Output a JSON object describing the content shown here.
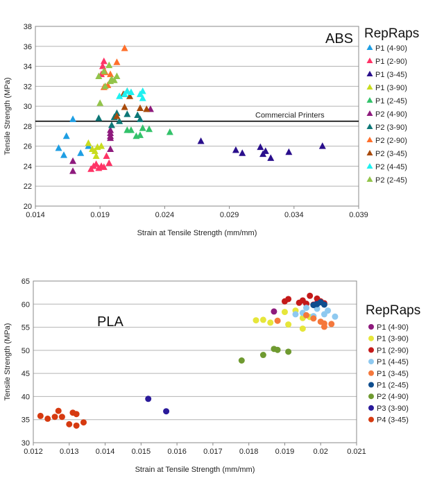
{
  "chart_data": [
    {
      "type": "scatter",
      "title": "ABS",
      "xlabel": "Strain at Tensile Strength (mm/mm)",
      "ylabel": "Tensile Strength (MPa)",
      "xlim": [
        0.014,
        0.039
      ],
      "ylim": [
        20,
        38
      ],
      "x_ticks": [
        "0.014",
        "0.019",
        "0.024",
        "0.029",
        "0.034",
        "0.039"
      ],
      "y_ticks": [
        "20",
        "22",
        "24",
        "26",
        "28",
        "30",
        "32",
        "34",
        "36",
        "38"
      ],
      "grid": "horizontal",
      "legend_title": "RepRaps",
      "legend_position": "right",
      "marker": "triangle",
      "reference_line": {
        "y": 28.5,
        "label": "Commercial Printers"
      },
      "series": [
        {
          "name": "P1 (4-90)",
          "color": "#1e9ee3",
          "points": [
            [
              0.0158,
              25.8
            ],
            [
              0.0162,
              25.1
            ],
            [
              0.0164,
              27
            ],
            [
              0.0169,
              28.7
            ],
            [
              0.0175,
              25.3
            ],
            [
              0.0181,
              26
            ]
          ]
        },
        {
          "name": "P1 (2-90)",
          "color": "#ff3366",
          "points": [
            [
              0.0183,
              23.7
            ],
            [
              0.0185,
              24
            ],
            [
              0.0187,
              24.2
            ],
            [
              0.0189,
              23.8
            ],
            [
              0.0191,
              24
            ],
            [
              0.0193,
              23.9
            ],
            [
              0.0197,
              24.3
            ],
            [
              0.0195,
              25
            ],
            [
              0.0191,
              33.2
            ],
            [
              0.0193,
              34.5
            ],
            [
              0.0192,
              34
            ]
          ]
        },
        {
          "name": "P1 (3-45)",
          "color": "#2a0f8c",
          "points": [
            [
              0.0268,
              26.5
            ],
            [
              0.0295,
              25.6
            ],
            [
              0.03,
              25.3
            ],
            [
              0.0314,
              25.9
            ],
            [
              0.0316,
              25.2
            ],
            [
              0.0318,
              25.5
            ],
            [
              0.0322,
              24.8
            ],
            [
              0.0336,
              25.4
            ],
            [
              0.0362,
              26
            ]
          ]
        },
        {
          "name": "P1 (3-90)",
          "color": "#c8dc1e",
          "points": [
            [
              0.0181,
              26.3
            ],
            [
              0.0184,
              25.7
            ],
            [
              0.0186,
              25.5
            ],
            [
              0.0188,
              25.9
            ],
            [
              0.0191,
              26
            ],
            [
              0.0187,
              25
            ]
          ]
        },
        {
          "name": "P1 (2-45)",
          "color": "#33c26a",
          "points": [
            [
              0.0211,
              27.6
            ],
            [
              0.0214,
              27.6
            ],
            [
              0.0218,
              27
            ],
            [
              0.0221,
              27.1
            ],
            [
              0.0223,
              27.8
            ],
            [
              0.0228,
              27.7
            ],
            [
              0.0244,
              27.4
            ]
          ]
        },
        {
          "name": "P2 (4-90)",
          "color": "#8e1a7d",
          "points": [
            [
              0.0169,
              24.5
            ],
            [
              0.0169,
              23.5
            ],
            [
              0.0198,
              27
            ],
            [
              0.0198,
              27.3
            ],
            [
              0.0198,
              27.6
            ],
            [
              0.0198,
              25.7
            ],
            [
              0.0229,
              29.7
            ],
            [
              0.0198,
              26.8
            ]
          ]
        },
        {
          "name": "P2 (3-90)",
          "color": "#0d7777",
          "points": [
            [
              0.0189,
              28.8
            ],
            [
              0.0199,
              28.1
            ],
            [
              0.0201,
              28.9
            ],
            [
              0.0203,
              29.3
            ],
            [
              0.0205,
              28.5
            ],
            [
              0.0211,
              29.2
            ],
            [
              0.0219,
              29.1
            ],
            [
              0.0221,
              28.7
            ]
          ]
        },
        {
          "name": "P2 (2-90)",
          "color": "#ff6f2a",
          "points": [
            [
              0.0193,
              31.9
            ],
            [
              0.0196,
              32.1
            ],
            [
              0.0198,
              33.2
            ],
            [
              0.0203,
              34.4
            ],
            [
              0.0209,
              35.8
            ],
            [
              0.0194,
              33.4
            ]
          ]
        },
        {
          "name": "P2 (3-45)",
          "color": "#a84a0a",
          "points": [
            [
              0.0203,
              29
            ],
            [
              0.0209,
              29.9
            ],
            [
              0.0211,
              31.5
            ],
            [
              0.0213,
              31
            ],
            [
              0.0221,
              29.8
            ],
            [
              0.0226,
              29.7
            ],
            [
              0.0208,
              31.2
            ]
          ]
        },
        {
          "name": "P2 (4-45)",
          "color": "#1ef0f0",
          "points": [
            [
              0.0205,
              31
            ],
            [
              0.0209,
              31.2
            ],
            [
              0.0211,
              31.5
            ],
            [
              0.0214,
              31.4
            ],
            [
              0.0221,
              31.2
            ],
            [
              0.0223,
              31.5
            ],
            [
              0.0223,
              30.8
            ]
          ]
        },
        {
          "name": "P2 (2-45)",
          "color": "#92c44a",
          "points": [
            [
              0.0189,
              33
            ],
            [
              0.019,
              30.3
            ],
            [
              0.0193,
              33.5
            ],
            [
              0.0194,
              32
            ],
            [
              0.0197,
              34.1
            ],
            [
              0.0198,
              32.5
            ],
            [
              0.0199,
              32.7
            ],
            [
              0.0201,
              32.6
            ],
            [
              0.0203,
              33
            ]
          ]
        }
      ]
    },
    {
      "type": "scatter",
      "title": "PLA",
      "xlabel": "Strain at Tensile Strength (mm/mm)",
      "ylabel": "Tensile Strength (MPa)",
      "xlim": [
        0.012,
        0.021
      ],
      "ylim": [
        30,
        65
      ],
      "x_ticks": [
        "0.012",
        "0.013",
        "0.014",
        "0.015",
        "0.016",
        "0.017",
        "0.018",
        "0.019",
        "0.02",
        "0.021"
      ],
      "y_ticks": [
        "30",
        "35",
        "40",
        "45",
        "50",
        "55",
        "60",
        "65"
      ],
      "grid": "horizontal",
      "legend_title": "RepRaps",
      "legend_position": "right",
      "marker": "circle",
      "series": [
        {
          "name": "P1 (4-90)",
          "color": "#8e1a7d",
          "points": [
            [
              0.0187,
              58.4
            ],
            [
              0.0199,
              60.2
            ]
          ]
        },
        {
          "name": "P1 (3-90)",
          "color": "#e6e63a",
          "points": [
            [
              0.0182,
              56.5
            ],
            [
              0.0184,
              56.6
            ],
            [
              0.0186,
              56
            ],
            [
              0.0188,
              56.4
            ],
            [
              0.0191,
              55.6
            ],
            [
              0.019,
              58.3
            ],
            [
              0.0195,
              57
            ],
            [
              0.0195,
              54.7
            ],
            [
              0.0197,
              57.2
            ],
            [
              0.0193,
              58.6
            ]
          ]
        },
        {
          "name": "P1 (2-90)",
          "color": "#c41a1a",
          "points": [
            [
              0.019,
              60.6
            ],
            [
              0.0191,
              61.1
            ],
            [
              0.0194,
              60.3
            ],
            [
              0.0195,
              60.8
            ],
            [
              0.0196,
              60.1
            ],
            [
              0.0197,
              61.8
            ],
            [
              0.0198,
              59.9
            ],
            [
              0.02,
              60.6
            ],
            [
              0.0199,
              61.2
            ],
            [
              0.0201,
              60.2
            ]
          ]
        },
        {
          "name": "P1 (4-45)",
          "color": "#8ec9f0",
          "points": [
            [
              0.0193,
              57.8
            ],
            [
              0.0195,
              58.1
            ],
            [
              0.0198,
              57.4
            ],
            [
              0.0199,
              59
            ],
            [
              0.0202,
              58.6
            ],
            [
              0.0204,
              57.3
            ],
            [
              0.0201,
              57.8
            ],
            [
              0.0196,
              59.2
            ]
          ]
        },
        {
          "name": "P1 (3-45)",
          "color": "#f5783c",
          "points": [
            [
              0.0188,
              56.4
            ],
            [
              0.0196,
              57.6
            ],
            [
              0.0198,
              56.9
            ],
            [
              0.02,
              56.2
            ],
            [
              0.0201,
              55.8
            ],
            [
              0.0203,
              55.7
            ],
            [
              0.0201,
              55.1
            ]
          ]
        },
        {
          "name": "P1 (2-45)",
          "color": "#0e4d8e",
          "points": [
            [
              0.0198,
              59.8
            ],
            [
              0.02,
              60.4
            ],
            [
              0.0201,
              59.9
            ],
            [
              0.0199,
              60
            ]
          ]
        },
        {
          "name": "P2 (4-90)",
          "color": "#6f9a30",
          "points": [
            [
              0.0178,
              47.8
            ],
            [
              0.0184,
              49
            ],
            [
              0.0187,
              50.3
            ],
            [
              0.0188,
              50.1
            ],
            [
              0.0191,
              49.7
            ]
          ]
        },
        {
          "name": "P3 (3-90)",
          "color": "#2a1a9a",
          "points": [
            [
              0.0152,
              39.5
            ],
            [
              0.0157,
              36.8
            ]
          ]
        },
        {
          "name": "P4 (3-45)",
          "color": "#d63a10",
          "points": [
            [
              0.0122,
              35.8
            ],
            [
              0.0124,
              35.2
            ],
            [
              0.0126,
              35.6
            ],
            [
              0.0127,
              36.9
            ],
            [
              0.0128,
              35.6
            ],
            [
              0.013,
              34
            ],
            [
              0.0131,
              36.5
            ],
            [
              0.0132,
              33.7
            ],
            [
              0.0132,
              36.2
            ],
            [
              0.0134,
              34.4
            ]
          ]
        }
      ]
    }
  ]
}
